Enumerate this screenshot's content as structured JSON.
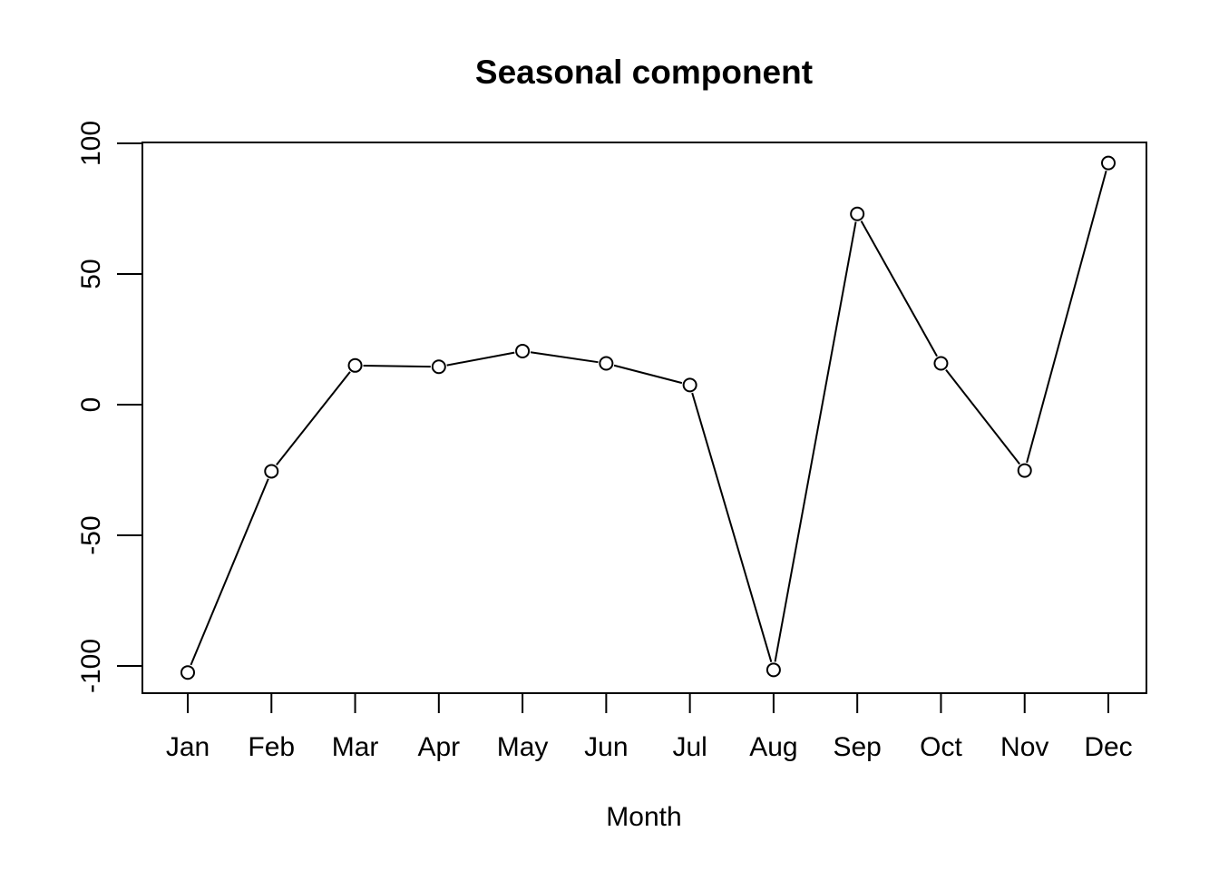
{
  "chart_data": {
    "type": "line",
    "title": "Seasonal component",
    "xlabel": "Month",
    "ylabel": "",
    "categories": [
      "Jan",
      "Feb",
      "Mar",
      "Apr",
      "May",
      "Jun",
      "Jul",
      "Aug",
      "Sep",
      "Oct",
      "Nov",
      "Dec"
    ],
    "values": [
      -102.5,
      -25.5,
      15.0,
      14.5,
      20.5,
      15.8,
      7.5,
      -101.5,
      73.0,
      15.8,
      -25.2,
      92.5
    ],
    "ylim": [
      -110,
      100
    ],
    "yticks": [
      -100,
      -50,
      0,
      50,
      100
    ],
    "ytick_labels": [
      "-100",
      "-50",
      "0",
      "50",
      "100"
    ],
    "markers": "open-circle",
    "grid": false
  }
}
